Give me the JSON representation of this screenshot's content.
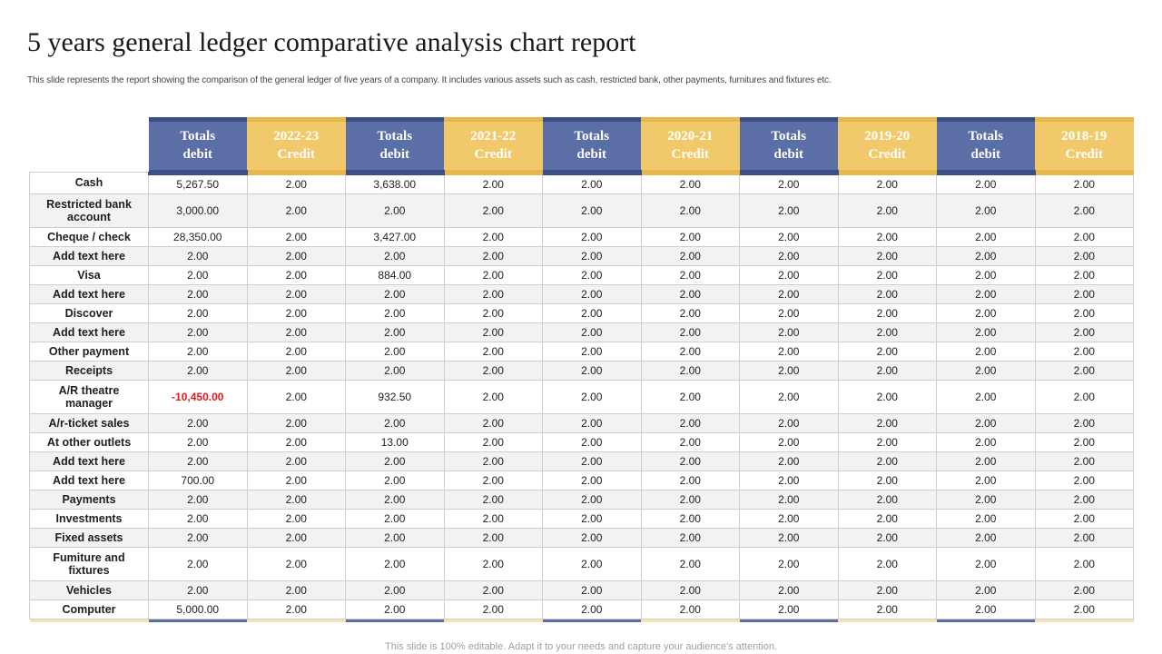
{
  "title": "5 years general ledger comparative analysis chart report",
  "subtitle": "This slide represents the report showing the comparison of the general ledger of five years of a company. It includes various assets such as cash, restricted bank, other payments, furnitures and fixtures etc.",
  "footer": "This slide is 100% editable. Adapt it to your needs and capture your audience's attention.",
  "colors": {
    "debit_header": "#5b6fa6",
    "credit_header": "#f1c96b",
    "negative_value": "#e11919"
  },
  "headers": [
    {
      "line1": "Totals",
      "line2": "debit",
      "kind": "debit"
    },
    {
      "line1": "2022-23",
      "line2": "Credit",
      "kind": "credit"
    },
    {
      "line1": "Totals",
      "line2": "debit",
      "kind": "debit"
    },
    {
      "line1": "2021-22",
      "line2": "Credit",
      "kind": "credit"
    },
    {
      "line1": "Totals",
      "line2": "debit",
      "kind": "debit"
    },
    {
      "line1": "2020-21",
      "line2": "Credit",
      "kind": "credit"
    },
    {
      "line1": "Totals",
      "line2": "debit",
      "kind": "debit"
    },
    {
      "line1": "2019-20",
      "line2": "Credit",
      "kind": "credit"
    },
    {
      "line1": "Totals",
      "line2": "debit",
      "kind": "debit"
    },
    {
      "line1": "2018-19",
      "line2": "Credit",
      "kind": "credit"
    }
  ],
  "rows": [
    {
      "label": "Cash",
      "values": [
        "5,267.50",
        "2.00",
        "3,638.00",
        "2.00",
        "2.00",
        "2.00",
        "2.00",
        "2.00",
        "2.00",
        "2.00"
      ]
    },
    {
      "label": "Restricted bank account",
      "values": [
        "3,000.00",
        "2.00",
        "2.00",
        "2.00",
        "2.00",
        "2.00",
        "2.00",
        "2.00",
        "2.00",
        "2.00"
      ]
    },
    {
      "label": "Cheque / check",
      "values": [
        "28,350.00",
        "2.00",
        "3,427.00",
        "2.00",
        "2.00",
        "2.00",
        "2.00",
        "2.00",
        "2.00",
        "2.00"
      ]
    },
    {
      "label": "Add text here",
      "values": [
        "2.00",
        "2.00",
        "2.00",
        "2.00",
        "2.00",
        "2.00",
        "2.00",
        "2.00",
        "2.00",
        "2.00"
      ]
    },
    {
      "label": "Visa",
      "values": [
        "2.00",
        "2.00",
        "884.00",
        "2.00",
        "2.00",
        "2.00",
        "2.00",
        "2.00",
        "2.00",
        "2.00"
      ]
    },
    {
      "label": "Add text here",
      "values": [
        "2.00",
        "2.00",
        "2.00",
        "2.00",
        "2.00",
        "2.00",
        "2.00",
        "2.00",
        "2.00",
        "2.00"
      ]
    },
    {
      "label": "Discover",
      "values": [
        "2.00",
        "2.00",
        "2.00",
        "2.00",
        "2.00",
        "2.00",
        "2.00",
        "2.00",
        "2.00",
        "2.00"
      ]
    },
    {
      "label": "Add text here",
      "values": [
        "2.00",
        "2.00",
        "2.00",
        "2.00",
        "2.00",
        "2.00",
        "2.00",
        "2.00",
        "2.00",
        "2.00"
      ]
    },
    {
      "label": "Other payment",
      "values": [
        "2.00",
        "2.00",
        "2.00",
        "2.00",
        "2.00",
        "2.00",
        "2.00",
        "2.00",
        "2.00",
        "2.00"
      ]
    },
    {
      "label": "Receipts",
      "values": [
        "2.00",
        "2.00",
        "2.00",
        "2.00",
        "2.00",
        "2.00",
        "2.00",
        "2.00",
        "2.00",
        "2.00"
      ]
    },
    {
      "label": "A/R theatre manager",
      "values": [
        "-10,450.00",
        "2.00",
        "932.50",
        "2.00",
        "2.00",
        "2.00",
        "2.00",
        "2.00",
        "2.00",
        "2.00"
      ]
    },
    {
      "label": "A/r-ticket sales",
      "values": [
        "2.00",
        "2.00",
        "2.00",
        "2.00",
        "2.00",
        "2.00",
        "2.00",
        "2.00",
        "2.00",
        "2.00"
      ]
    },
    {
      "label": "At other outlets",
      "values": [
        "2.00",
        "2.00",
        "13.00",
        "2.00",
        "2.00",
        "2.00",
        "2.00",
        "2.00",
        "2.00",
        "2.00"
      ]
    },
    {
      "label": "Add text here",
      "values": [
        "2.00",
        "2.00",
        "2.00",
        "2.00",
        "2.00",
        "2.00",
        "2.00",
        "2.00",
        "2.00",
        "2.00"
      ]
    },
    {
      "label": "Add text here",
      "values": [
        "700.00",
        "2.00",
        "2.00",
        "2.00",
        "2.00",
        "2.00",
        "2.00",
        "2.00",
        "2.00",
        "2.00"
      ]
    },
    {
      "label": "Payments",
      "values": [
        "2.00",
        "2.00",
        "2.00",
        "2.00",
        "2.00",
        "2.00",
        "2.00",
        "2.00",
        "2.00",
        "2.00"
      ]
    },
    {
      "label": "Investments",
      "values": [
        "2.00",
        "2.00",
        "2.00",
        "2.00",
        "2.00",
        "2.00",
        "2.00",
        "2.00",
        "2.00",
        "2.00"
      ]
    },
    {
      "label": "Fixed assets",
      "values": [
        "2.00",
        "2.00",
        "2.00",
        "2.00",
        "2.00",
        "2.00",
        "2.00",
        "2.00",
        "2.00",
        "2.00"
      ]
    },
    {
      "label": "Fumiture and fixtures",
      "values": [
        "2.00",
        "2.00",
        "2.00",
        "2.00",
        "2.00",
        "2.00",
        "2.00",
        "2.00",
        "2.00",
        "2.00"
      ]
    },
    {
      "label": "Vehicles",
      "values": [
        "2.00",
        "2.00",
        "2.00",
        "2.00",
        "2.00",
        "2.00",
        "2.00",
        "2.00",
        "2.00",
        "2.00"
      ]
    },
    {
      "label": "Computer",
      "values": [
        "5,000.00",
        "2.00",
        "2.00",
        "2.00",
        "2.00",
        "2.00",
        "2.00",
        "2.00",
        "2.00",
        "2.00"
      ]
    }
  ]
}
